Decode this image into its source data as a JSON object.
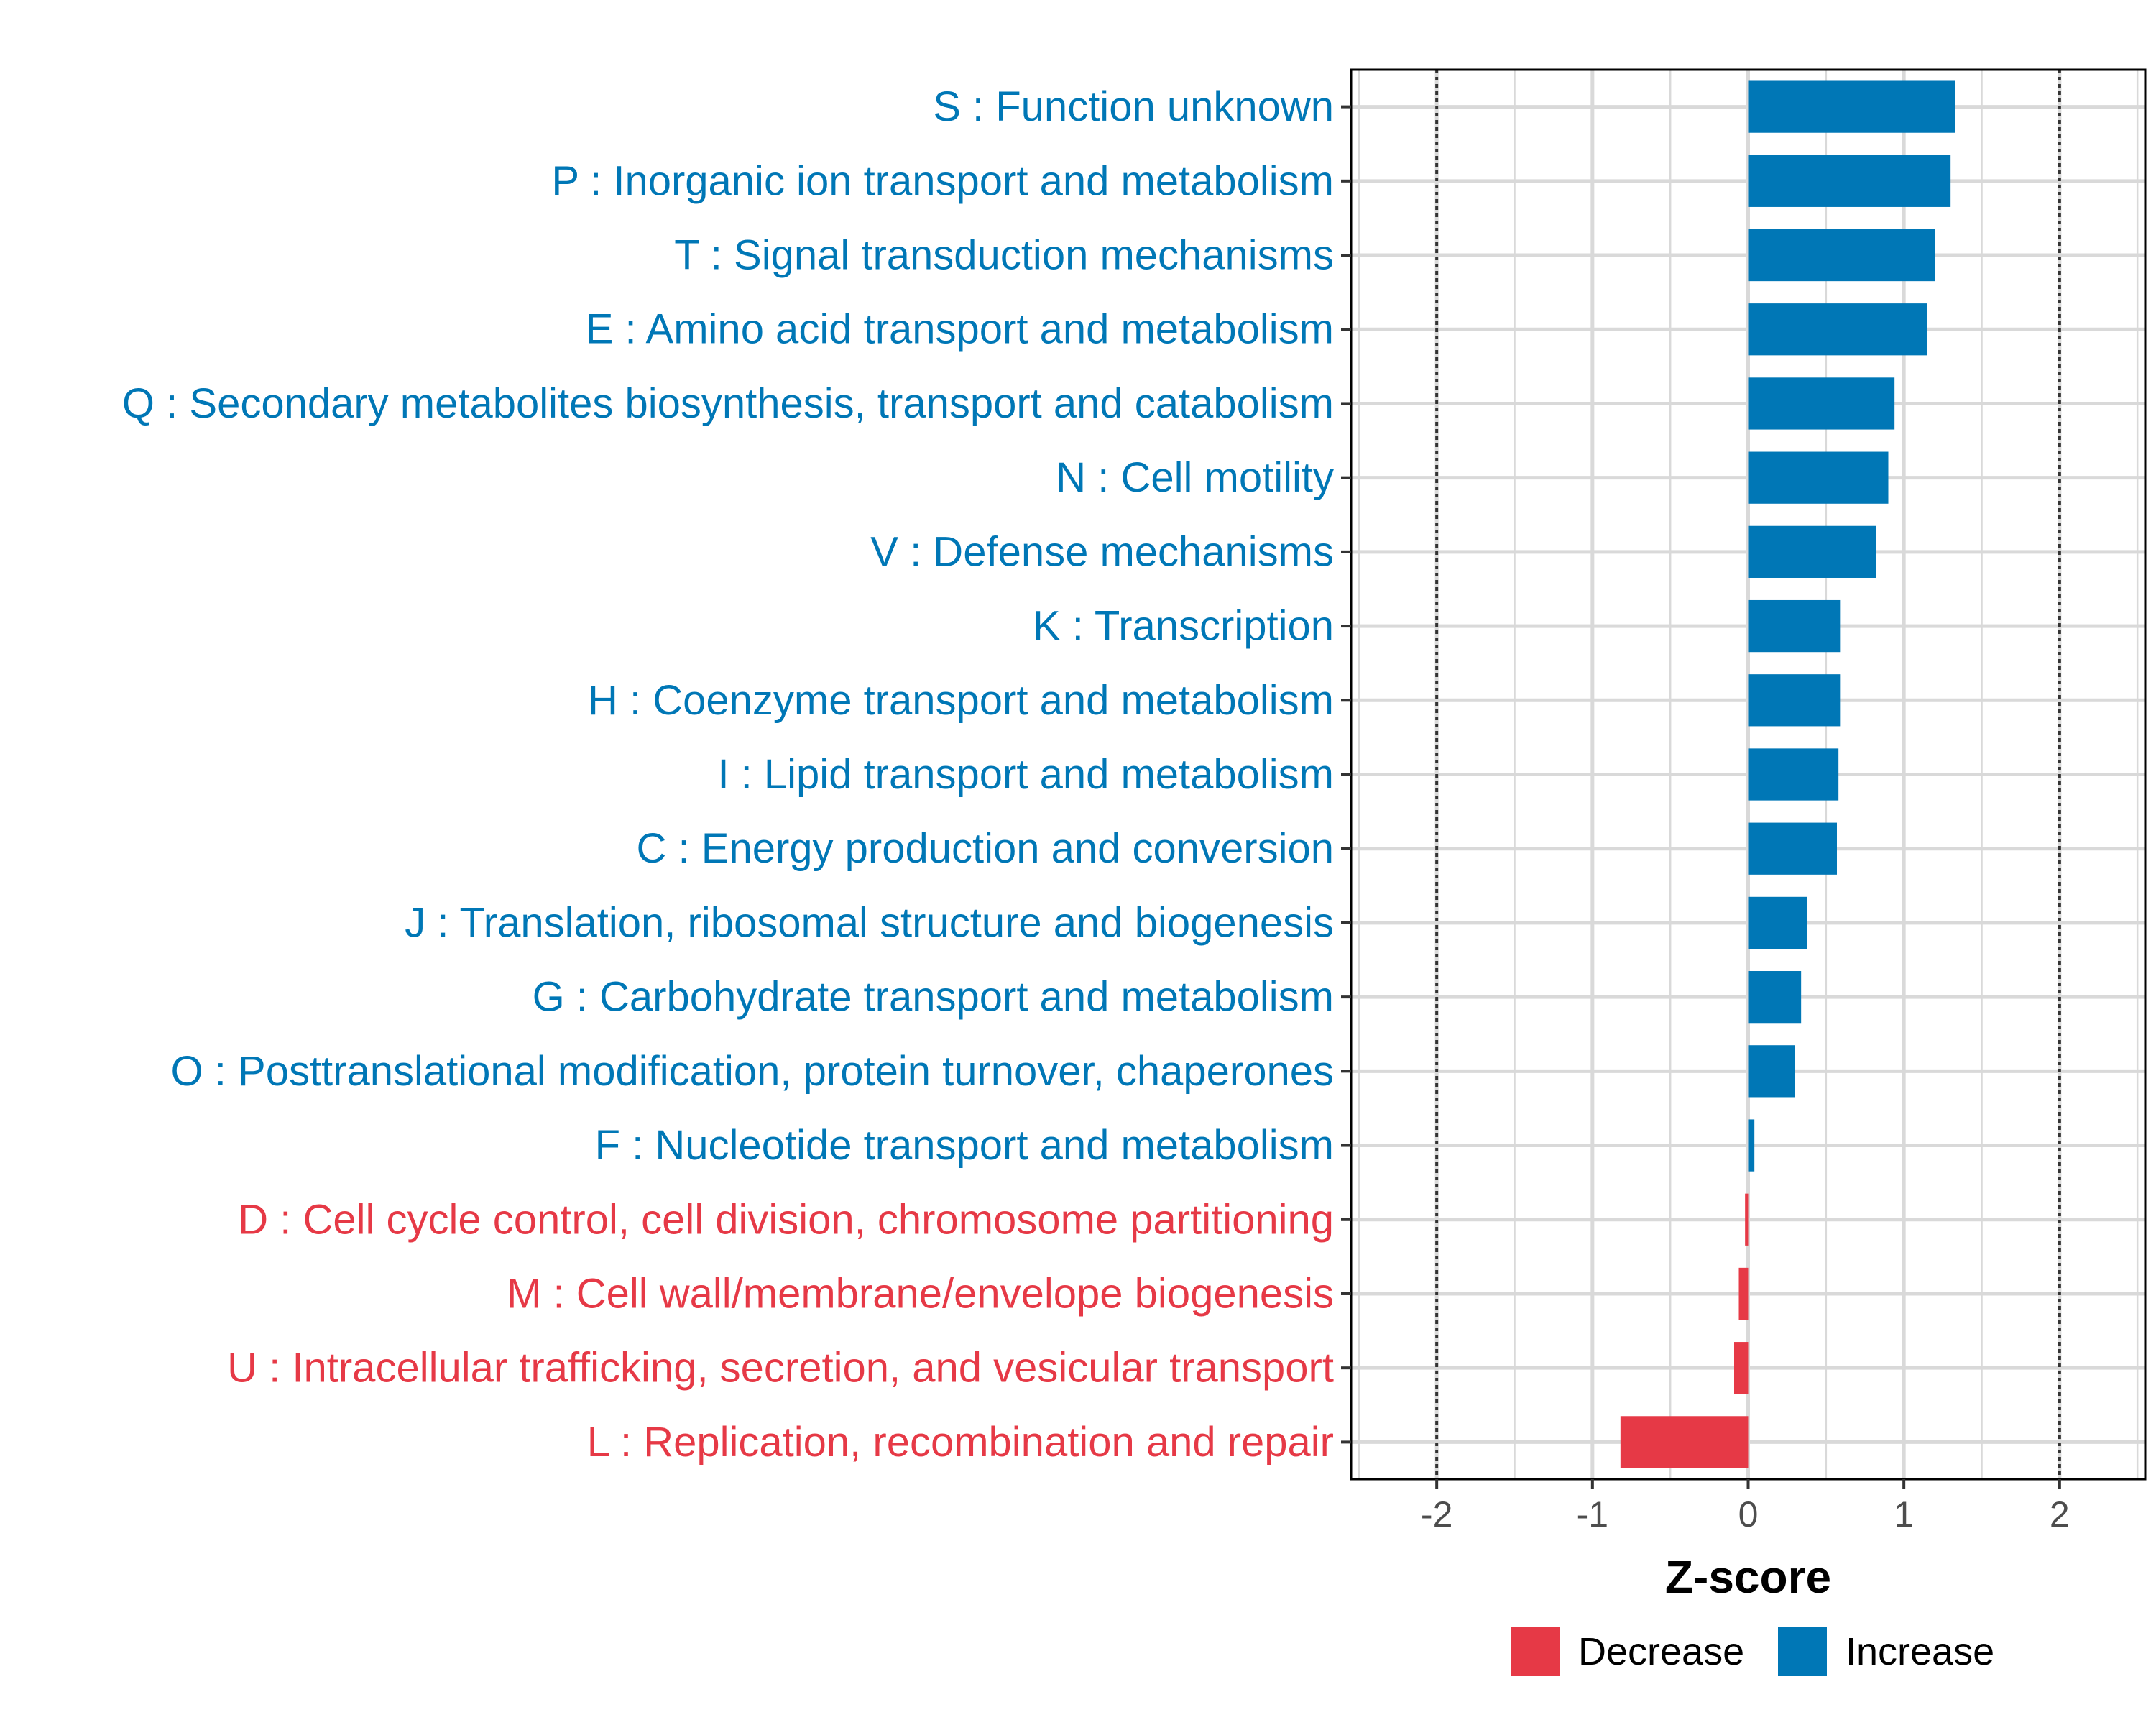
{
  "chart_data": {
    "type": "bar",
    "orientation": "horizontal",
    "categories": [
      "S : Function unknown",
      "P : Inorganic ion transport and metabolism",
      "T : Signal transduction mechanisms",
      "E : Amino acid transport and metabolism",
      "Q : Secondary metabolites biosynthesis, transport and catabolism",
      "N : Cell motility",
      "V : Defense mechanisms",
      "K : Transcription",
      "H : Coenzyme transport and metabolism",
      "I : Lipid transport and metabolism",
      "C : Energy production and conversion",
      "J : Translation, ribosomal structure and biogenesis",
      "G : Carbohydrate transport and metabolism",
      "O : Posttranslational modification, protein turnover, chaperones",
      "F : Nucleotide transport and metabolism",
      "D : Cell cycle control, cell division, chromosome partitioning",
      "M : Cell wall/membrane/envelope biogenesis",
      "U : Intracellular trafficking, secretion, and vesicular transport",
      "L : Replication, recombination and repair"
    ],
    "values": [
      1.33,
      1.3,
      1.2,
      1.15,
      0.94,
      0.9,
      0.82,
      0.59,
      0.59,
      0.58,
      0.57,
      0.38,
      0.34,
      0.3,
      0.04,
      -0.02,
      -0.06,
      -0.09,
      -0.82
    ],
    "groups": [
      "Increase",
      "Increase",
      "Increase",
      "Increase",
      "Increase",
      "Increase",
      "Increase",
      "Increase",
      "Increase",
      "Increase",
      "Increase",
      "Increase",
      "Increase",
      "Increase",
      "Increase",
      "Decrease",
      "Decrease",
      "Decrease",
      "Decrease"
    ],
    "xlabel": "Z-score",
    "ylabel": "",
    "xlim": [
      -2.55,
      2.55
    ],
    "xticks": [
      -2,
      -1,
      0,
      1,
      2
    ],
    "xtick_labels": [
      "-2",
      "-1",
      "0",
      "1",
      "2"
    ],
    "reference_lines": [
      -2,
      2
    ],
    "grid": true,
    "legend": {
      "position": "bottom-right",
      "entries": [
        {
          "label": "Decrease",
          "color": "#E63946"
        },
        {
          "label": "Increase",
          "color": "#0077B6"
        }
      ]
    },
    "colors": {
      "Increase": "#0077B6",
      "Decrease": "#E63946"
    }
  }
}
